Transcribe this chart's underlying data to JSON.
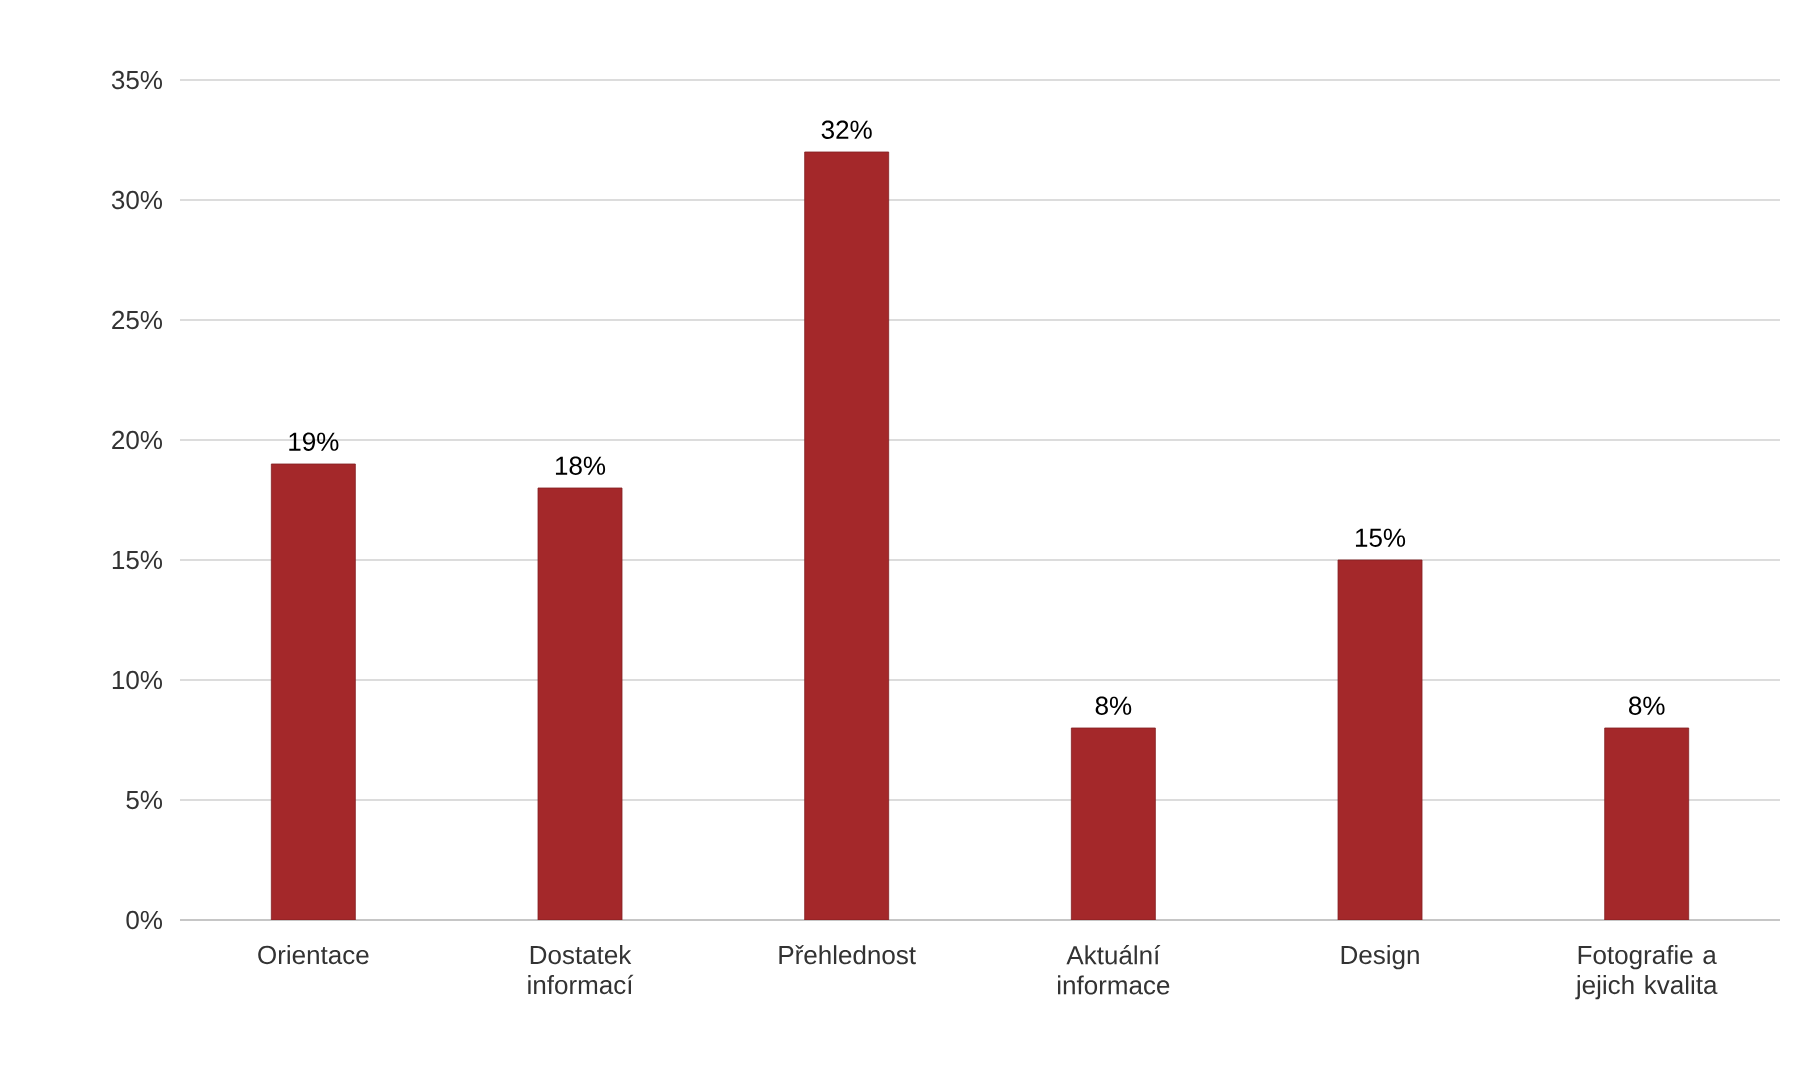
{
  "chart_data": {
    "type": "bar",
    "categories": [
      "Orientace",
      "Dostatek informací",
      "Přehlednost",
      "Aktuální informace",
      "Design",
      "Fotografie a jejich kvalita"
    ],
    "values": [
      19,
      18,
      32,
      8,
      15,
      8
    ],
    "value_labels": [
      "19%",
      "18%",
      "32%",
      "8%",
      "15%",
      "8%"
    ],
    "color": "#a4282a",
    "ylim": [
      0,
      35
    ],
    "yticks": [
      {
        "value": 0,
        "label": "0%"
      },
      {
        "value": 5,
        "label": "5%"
      },
      {
        "value": 10,
        "label": "10%"
      },
      {
        "value": 15,
        "label": "15%"
      },
      {
        "value": 20,
        "label": "20%"
      },
      {
        "value": 25,
        "label": "25%"
      },
      {
        "value": 30,
        "label": "30%"
      },
      {
        "value": 35,
        "label": "35%"
      }
    ],
    "grid": "y"
  }
}
